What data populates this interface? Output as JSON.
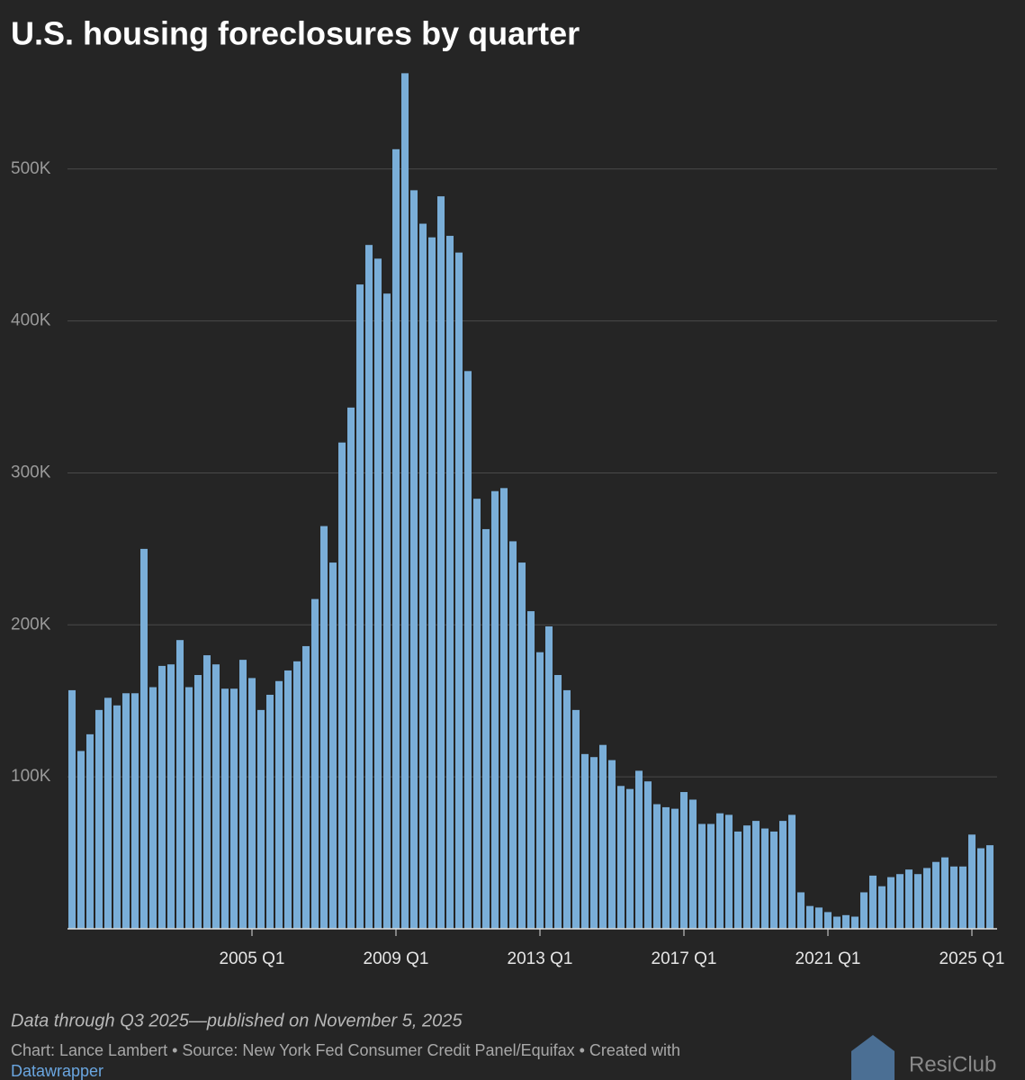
{
  "chart_data": {
    "type": "bar",
    "title": "U.S. housing foreclosures by quarter",
    "categories": [
      null,
      null,
      null,
      null,
      null,
      null,
      null,
      null,
      null,
      null,
      null,
      null,
      null,
      null,
      null,
      null,
      null,
      null,
      null,
      null,
      "2005 Q1",
      null,
      null,
      null,
      null,
      null,
      null,
      null,
      null,
      null,
      null,
      null,
      null,
      null,
      null,
      null,
      "2009 Q1",
      null,
      null,
      null,
      null,
      null,
      null,
      null,
      null,
      null,
      null,
      null,
      null,
      null,
      null,
      null,
      "2013 Q1",
      null,
      null,
      null,
      null,
      null,
      null,
      null,
      null,
      null,
      null,
      null,
      null,
      null,
      null,
      null,
      "2017 Q1",
      null,
      null,
      null,
      null,
      null,
      null,
      null,
      null,
      null,
      null,
      null,
      null,
      null,
      null,
      null,
      "2021 Q1",
      null,
      null,
      null,
      null,
      null,
      null,
      null,
      null,
      null,
      null,
      null,
      null,
      null,
      null,
      null,
      "2025 Q1",
      null,
      null
    ],
    "values": [
      157000,
      117000,
      128000,
      144000,
      152000,
      147000,
      155000,
      155000,
      250000,
      159000,
      173000,
      174000,
      190000,
      159000,
      167000,
      180000,
      174000,
      158000,
      158000,
      177000,
      165000,
      144000,
      154000,
      163000,
      170000,
      176000,
      186000,
      217000,
      265000,
      241000,
      320000,
      343000,
      424000,
      450000,
      441000,
      418000,
      513000,
      563000,
      486000,
      464000,
      455000,
      482000,
      456000,
      445000,
      367000,
      283000,
      263000,
      288000,
      290000,
      255000,
      241000,
      209000,
      182000,
      199000,
      167000,
      157000,
      144000,
      115000,
      113000,
      121000,
      111000,
      94000,
      92000,
      104000,
      97000,
      82000,
      80000,
      79000,
      90000,
      85000,
      69000,
      69000,
      76000,
      75000,
      64000,
      68000,
      71000,
      66000,
      64000,
      71000,
      75000,
      24000,
      15000,
      14000,
      11000,
      8000,
      9000,
      8000,
      24000,
      35000,
      28000,
      34000,
      36000,
      39000,
      36000,
      40000,
      44000,
      47000,
      41000,
      41000,
      62000,
      53000,
      55000
    ],
    "color": "#7aaed8",
    "ylim": [
      0,
      565000
    ],
    "yticks": [
      {
        "value": 100000,
        "label": "100K"
      },
      {
        "value": 200000,
        "label": "200K"
      },
      {
        "value": 300000,
        "label": "300K"
      },
      {
        "value": 400000,
        "label": "400K"
      },
      {
        "value": 500000,
        "label": "500K"
      }
    ],
    "grid": true,
    "note": "Data through Q3 2025—published on November 5, 2025",
    "credit": "Chart: Lance Lambert • Source: New York Fed Consumer Credit Panel/Equifax • Created with",
    "credit_link": "Datawrapper",
    "logo": "ResiClub"
  }
}
